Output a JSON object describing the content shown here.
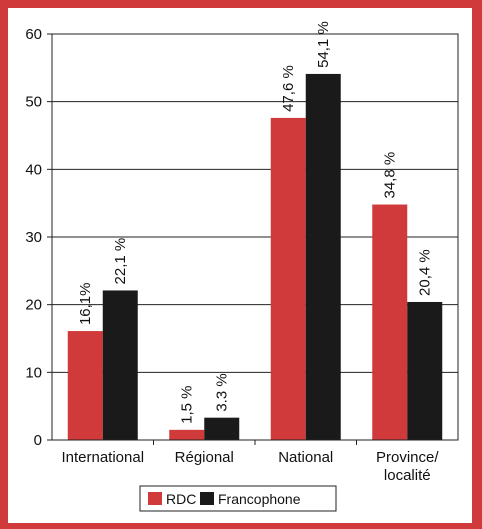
{
  "chart_data": {
    "type": "bar",
    "categories": [
      "International",
      "Régional",
      "National",
      "Province/\nlocalité"
    ],
    "series": [
      {
        "name": "RDC",
        "color": "#d13a3a",
        "values": [
          16.1,
          1.5,
          47.6,
          34.8
        ],
        "labels": [
          "16,1%",
          "1,5 %",
          "47,6 %",
          "34,8 %"
        ]
      },
      {
        "name": "Francophone",
        "color": "#1a1a1a",
        "values": [
          22.1,
          3.3,
          54.1,
          20.4
        ],
        "labels": [
          "22,1 %",
          "3.3 %",
          "54,1 %",
          "20,4 %"
        ]
      }
    ],
    "ylim": [
      0,
      60
    ],
    "yticks": [
      0,
      10,
      20,
      30,
      40,
      50,
      60
    ],
    "grid": true,
    "legend": "bottom-center"
  }
}
